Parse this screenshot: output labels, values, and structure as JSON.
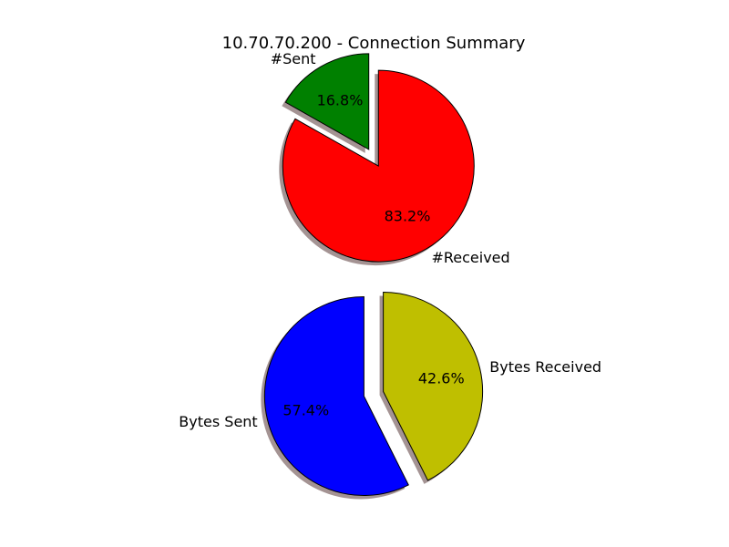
{
  "title": "10.70.70.200 - Connection Summary",
  "chart_data": [
    {
      "type": "pie",
      "exploded": true,
      "shadow": true,
      "slices": [
        {
          "label": "#Sent",
          "value": 16.8,
          "percent_label": "16.8%",
          "color": "#008000"
        },
        {
          "label": "#Received",
          "value": 83.2,
          "percent_label": "83.2%",
          "color": "#ff0000"
        }
      ]
    },
    {
      "type": "pie",
      "exploded": true,
      "shadow": true,
      "slices": [
        {
          "label": "Bytes Sent",
          "value": 57.4,
          "percent_label": "57.4%",
          "color": "#0000ff"
        },
        {
          "label": "Bytes Received",
          "value": 42.6,
          "percent_label": "42.6%",
          "color": "#bfbf00"
        }
      ]
    }
  ]
}
